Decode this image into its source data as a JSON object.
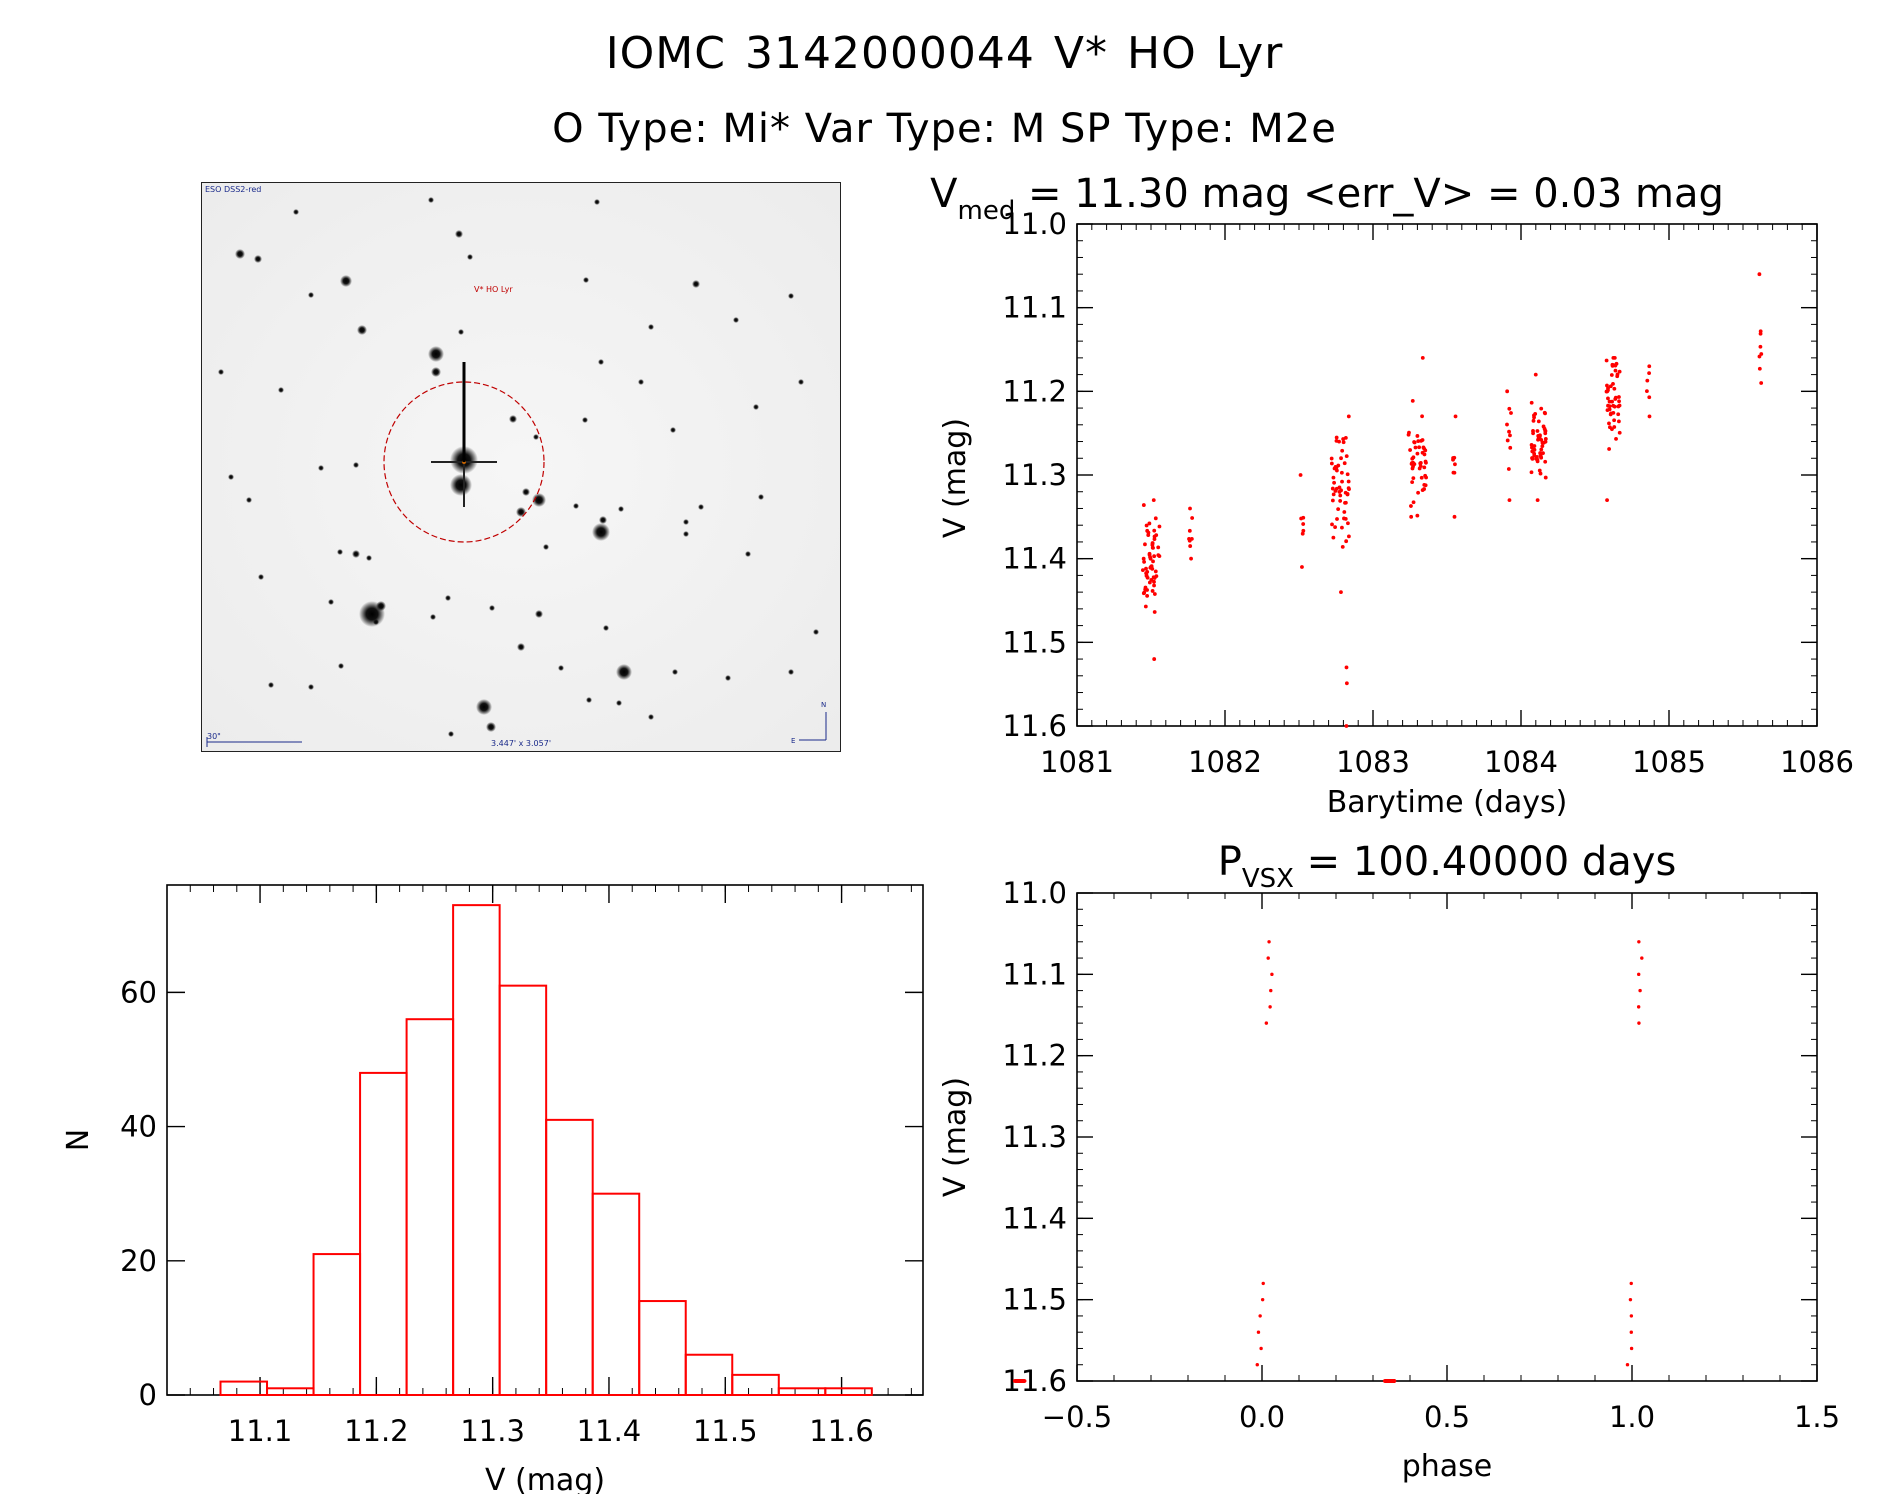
{
  "header": {
    "title_line1": "IOMC 3142000044   V* HO Lyr",
    "title_line2": "O Type: Mi*  Var Type: M  SP Type: M2e"
  },
  "image_panel": {
    "survey_label": "ESO DSS2-red",
    "target_label": "V* HO Lyr",
    "scale_label": "30\"",
    "fov_label": "3.447' x 3.057'",
    "compass_n": "N",
    "compass_e": "E",
    "circle_color": "#c00000"
  },
  "chart_data": [
    {
      "id": "lightcurve",
      "type": "scatter",
      "title_main": "V",
      "title_sub": "med",
      "title_rest": " = 11.30 mag <err_V> = 0.03 mag",
      "xlabel": "Barytime (days)",
      "ylabel": "V (mag)",
      "xlim": [
        1081,
        1086
      ],
      "ylim": [
        11.6,
        11.0
      ],
      "xticks": [
        "1081",
        "1082",
        "1083",
        "1084",
        "1085",
        "1086"
      ],
      "yticks": [
        "11.0",
        "11.1",
        "11.2",
        "11.3",
        "11.4",
        "11.5",
        "11.6"
      ],
      "color": "#ff0000",
      "groups": [
        {
          "x": 1081.5,
          "xw": 0.12,
          "ymin": 11.33,
          "ymax": 11.52,
          "center": 11.4,
          "n": 60
        },
        {
          "x": 1081.77,
          "xw": 0.03,
          "ymin": 11.34,
          "ymax": 11.4,
          "center": 11.37,
          "n": 8
        },
        {
          "x": 1082.52,
          "xw": 0.03,
          "ymin": 11.3,
          "ymax": 11.41,
          "center": 11.36,
          "n": 7
        },
        {
          "x": 1082.78,
          "xw": 0.12,
          "ymin": 11.23,
          "ymax": 11.44,
          "center": 11.32,
          "n": 55
        },
        {
          "x": 1082.82,
          "xw": 0.01,
          "ymin": 11.53,
          "ymax": 11.6,
          "center": 11.56,
          "n": 3
        },
        {
          "x": 1083.3,
          "xw": 0.12,
          "ymin": 11.16,
          "ymax": 11.35,
          "center": 11.28,
          "n": 50
        },
        {
          "x": 1083.55,
          "xw": 0.02,
          "ymin": 11.23,
          "ymax": 11.35,
          "center": 11.29,
          "n": 8
        },
        {
          "x": 1083.92,
          "xw": 0.03,
          "ymin": 11.2,
          "ymax": 11.33,
          "center": 11.27,
          "n": 10
        },
        {
          "x": 1084.12,
          "xw": 0.1,
          "ymin": 11.18,
          "ymax": 11.33,
          "center": 11.26,
          "n": 55
        },
        {
          "x": 1084.62,
          "xw": 0.1,
          "ymin": 11.16,
          "ymax": 11.33,
          "center": 11.21,
          "n": 50
        },
        {
          "x": 1084.86,
          "xw": 0.02,
          "ymin": 11.17,
          "ymax": 11.23,
          "center": 11.2,
          "n": 6
        },
        {
          "x": 1085.62,
          "xw": 0.02,
          "ymin": 11.06,
          "ymax": 11.19,
          "center": 11.16,
          "n": 8
        }
      ]
    },
    {
      "id": "histogram",
      "type": "bar",
      "xlabel": "V (mag)",
      "ylabel": "N",
      "xlim": [
        11.02,
        11.67
      ],
      "ylim": [
        0,
        76
      ],
      "xticks": [
        "11.1",
        "11.2",
        "11.3",
        "11.4",
        "11.5",
        "11.6"
      ],
      "yticks": [
        "0",
        "20",
        "40",
        "60"
      ],
      "bin_edges": [
        11.066,
        11.106,
        11.146,
        11.186,
        11.226,
        11.266,
        11.306,
        11.346,
        11.386,
        11.426,
        11.466,
        11.506,
        11.546,
        11.586,
        11.626
      ],
      "values": [
        2,
        1,
        21,
        48,
        56,
        73,
        61,
        41,
        30,
        14,
        6,
        3,
        1,
        1
      ],
      "color": "#ff0000"
    },
    {
      "id": "phased",
      "type": "scatter",
      "title_main": "P",
      "title_sub": "VSX",
      "title_rest": " = 100.40000 days",
      "xlabel": "phase",
      "ylabel": "V (mag)",
      "xlim": [
        -0.5,
        1.5
      ],
      "ylim": [
        11.6,
        11.0
      ],
      "xticks": [
        "−0.5",
        "0.0",
        "0.5",
        "1.0",
        "1.5"
      ],
      "yticks": [
        "11.0",
        "11.1",
        "11.2",
        "11.3",
        "11.4",
        "11.5",
        "11.6"
      ],
      "phase_start": 0.0,
      "phase_width": 0.03,
      "ymin": 11.06,
      "ymax": 11.6,
      "n": 330,
      "color": "#ff0000"
    }
  ]
}
